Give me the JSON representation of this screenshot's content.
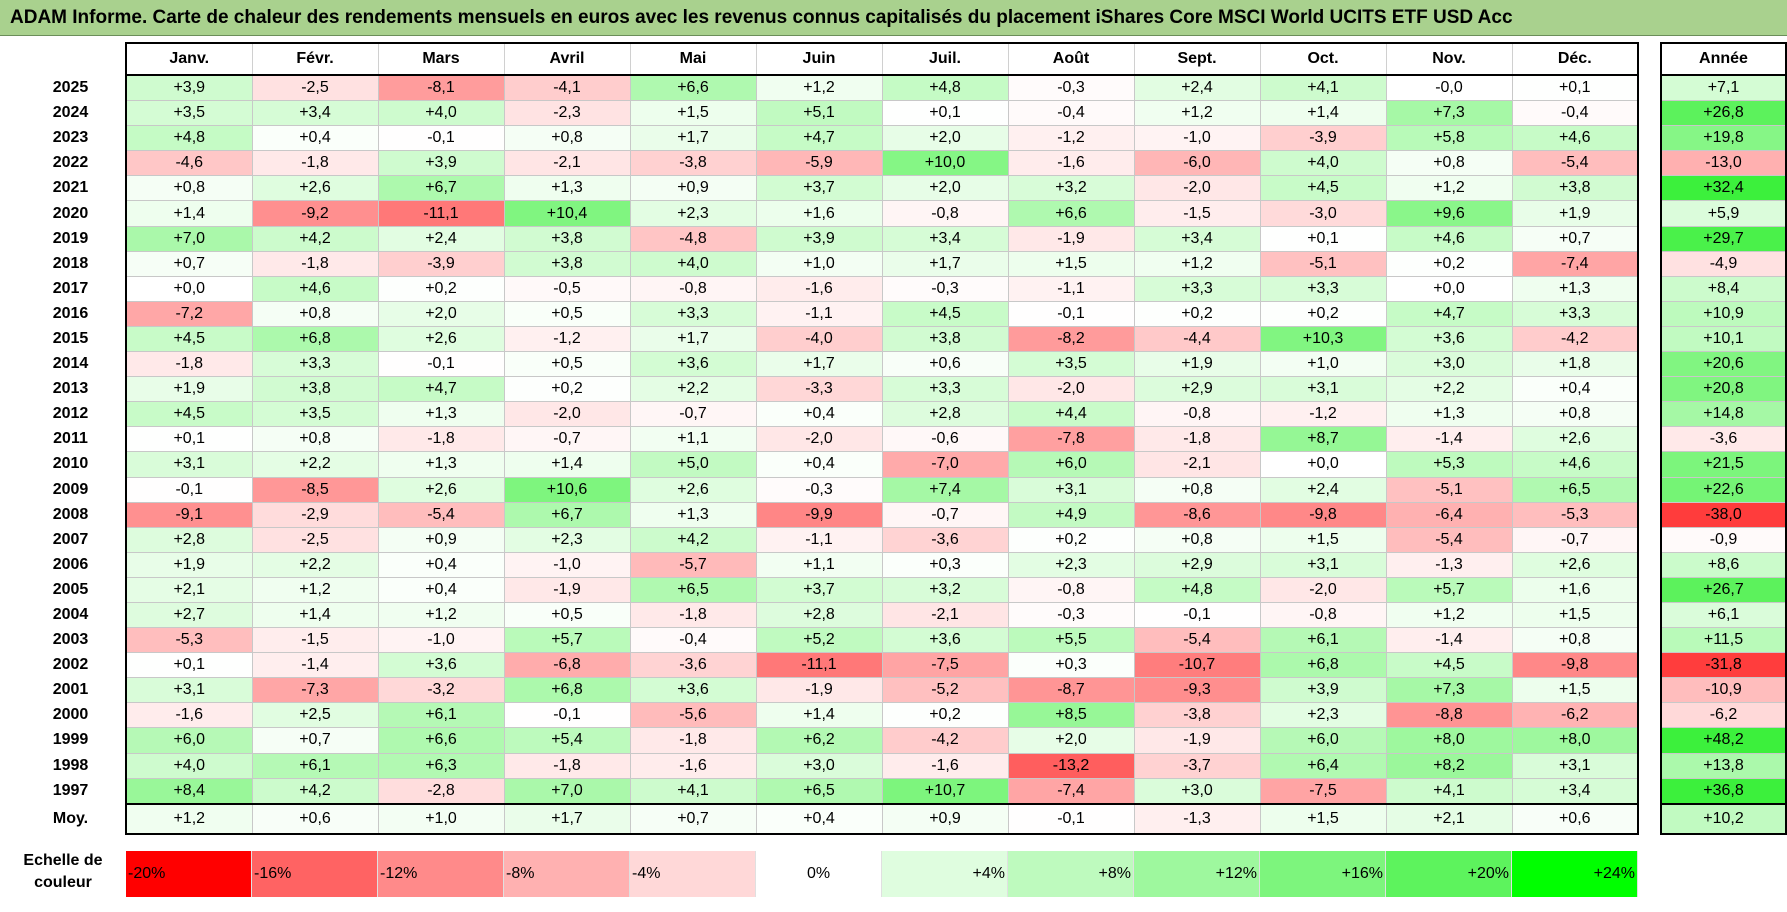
{
  "title": "ADAM Informe. Carte de chaleur des rendements mensuels en euros avec les revenus connus capitalisés du placement iShares Core MSCI World UCITS ETF USD Acc",
  "chart_data": {
    "type": "heatmap",
    "title": "ADAM Informe. Carte de chaleur des rendements mensuels en euros avec les revenus connus capitalisés du placement iShares Core MSCI World UCITS ETF USD Acc",
    "columns": [
      "Janv.",
      "Févr.",
      "Mars",
      "Avril",
      "Mai",
      "Juin",
      "Juil.",
      "Août",
      "Sept.",
      "Oct.",
      "Nov.",
      "Déc."
    ],
    "year_header": "Année",
    "rows": [
      {
        "year": "2025",
        "values": [
          "+3,9",
          "-2,5",
          "-8,1",
          "-4,1",
          "+6,6",
          "+1,2",
          "+4,8",
          "-0,3",
          "+2,4",
          "+4,1",
          "-0,0",
          "+0,1"
        ],
        "annual": "+7,1"
      },
      {
        "year": "2024",
        "values": [
          "+3,5",
          "+3,4",
          "+4,0",
          "-2,3",
          "+1,5",
          "+5,1",
          "+0,1",
          "-0,4",
          "+1,2",
          "+1,4",
          "+7,3",
          "-0,4"
        ],
        "annual": "+26,8"
      },
      {
        "year": "2023",
        "values": [
          "+4,8",
          "+0,4",
          "-0,1",
          "+0,8",
          "+1,7",
          "+4,7",
          "+2,0",
          "-1,2",
          "-1,0",
          "-3,9",
          "+5,8",
          "+4,6"
        ],
        "annual": "+19,8"
      },
      {
        "year": "2022",
        "values": [
          "-4,6",
          "-1,8",
          "+3,9",
          "-2,1",
          "-3,8",
          "-5,9",
          "+10,0",
          "-1,6",
          "-6,0",
          "+4,0",
          "+0,8",
          "-5,4"
        ],
        "annual": "-13,0"
      },
      {
        "year": "2021",
        "values": [
          "+0,8",
          "+2,6",
          "+6,7",
          "+1,3",
          "+0,9",
          "+3,7",
          "+2,0",
          "+3,2",
          "-2,0",
          "+4,5",
          "+1,2",
          "+3,8"
        ],
        "annual": "+32,4"
      },
      {
        "year": "2020",
        "values": [
          "+1,4",
          "-9,2",
          "-11,1",
          "+10,4",
          "+2,3",
          "+1,6",
          "-0,8",
          "+6,6",
          "-1,5",
          "-3,0",
          "+9,6",
          "+1,9"
        ],
        "annual": "+5,9"
      },
      {
        "year": "2019",
        "values": [
          "+7,0",
          "+4,2",
          "+2,4",
          "+3,8",
          "-4,8",
          "+3,9",
          "+3,4",
          "-1,9",
          "+3,4",
          "+0,1",
          "+4,6",
          "+0,7"
        ],
        "annual": "+29,7"
      },
      {
        "year": "2018",
        "values": [
          "+0,7",
          "-1,8",
          "-3,9",
          "+3,8",
          "+4,0",
          "+1,0",
          "+1,7",
          "+1,5",
          "+1,2",
          "-5,1",
          "+0,2",
          "-7,4"
        ],
        "annual": "-4,9"
      },
      {
        "year": "2017",
        "values": [
          "+0,0",
          "+4,6",
          "+0,2",
          "-0,5",
          "-0,8",
          "-1,6",
          "-0,3",
          "-1,1",
          "+3,3",
          "+3,3",
          "+0,0",
          "+1,3"
        ],
        "annual": "+8,4"
      },
      {
        "year": "2016",
        "values": [
          "-7,2",
          "+0,8",
          "+2,0",
          "+0,5",
          "+3,3",
          "-1,1",
          "+4,5",
          "-0,1",
          "+0,2",
          "+0,2",
          "+4,7",
          "+3,3"
        ],
        "annual": "+10,9"
      },
      {
        "year": "2015",
        "values": [
          "+4,5",
          "+6,8",
          "+2,6",
          "-1,2",
          "+1,7",
          "-4,0",
          "+3,8",
          "-8,2",
          "-4,4",
          "+10,3",
          "+3,6",
          "-4,2"
        ],
        "annual": "+10,1"
      },
      {
        "year": "2014",
        "values": [
          "-1,8",
          "+3,3",
          "-0,1",
          "+0,5",
          "+3,6",
          "+1,7",
          "+0,6",
          "+3,5",
          "+1,9",
          "+1,0",
          "+3,0",
          "+1,8"
        ],
        "annual": "+20,6"
      },
      {
        "year": "2013",
        "values": [
          "+1,9",
          "+3,8",
          "+4,7",
          "+0,2",
          "+2,2",
          "-3,3",
          "+3,3",
          "-2,0",
          "+2,9",
          "+3,1",
          "+2,2",
          "+0,4"
        ],
        "annual": "+20,8"
      },
      {
        "year": "2012",
        "values": [
          "+4,5",
          "+3,5",
          "+1,3",
          "-2,0",
          "-0,7",
          "+0,4",
          "+2,8",
          "+4,4",
          "-0,8",
          "-1,2",
          "+1,3",
          "+0,8"
        ],
        "annual": "+14,8"
      },
      {
        "year": "2011",
        "values": [
          "+0,1",
          "+0,8",
          "-1,8",
          "-0,7",
          "+1,1",
          "-2,0",
          "-0,6",
          "-7,8",
          "-1,8",
          "+8,7",
          "-1,4",
          "+2,6"
        ],
        "annual": "-3,6"
      },
      {
        "year": "2010",
        "values": [
          "+3,1",
          "+2,2",
          "+1,3",
          "+1,4",
          "+5,0",
          "+0,4",
          "-7,0",
          "+6,0",
          "-2,1",
          "+0,0",
          "+5,3",
          "+4,6"
        ],
        "annual": "+21,5"
      },
      {
        "year": "2009",
        "values": [
          "-0,1",
          "-8,5",
          "+2,6",
          "+10,6",
          "+2,6",
          "-0,3",
          "+7,4",
          "+3,1",
          "+0,8",
          "+2,4",
          "-5,1",
          "+6,5"
        ],
        "annual": "+22,6"
      },
      {
        "year": "2008",
        "values": [
          "-9,1",
          "-2,9",
          "-5,4",
          "+6,7",
          "+1,3",
          "-9,9",
          "-0,7",
          "+4,9",
          "-8,6",
          "-9,8",
          "-6,4",
          "-5,3"
        ],
        "annual": "-38,0"
      },
      {
        "year": "2007",
        "values": [
          "+2,8",
          "-2,5",
          "+0,9",
          "+2,3",
          "+4,2",
          "-1,1",
          "-3,6",
          "+0,2",
          "+0,8",
          "+1,5",
          "-5,4",
          "-0,7"
        ],
        "annual": "-0,9"
      },
      {
        "year": "2006",
        "values": [
          "+1,9",
          "+2,2",
          "+0,4",
          "-1,0",
          "-5,7",
          "+1,1",
          "+0,3",
          "+2,3",
          "+2,9",
          "+3,1",
          "-1,3",
          "+2,6"
        ],
        "annual": "+8,6"
      },
      {
        "year": "2005",
        "values": [
          "+2,1",
          "+1,2",
          "+0,4",
          "-1,9",
          "+6,5",
          "+3,7",
          "+3,2",
          "-0,8",
          "+4,8",
          "-2,0",
          "+5,7",
          "+1,6"
        ],
        "annual": "+26,7"
      },
      {
        "year": "2004",
        "values": [
          "+2,7",
          "+1,4",
          "+1,2",
          "+0,5",
          "-1,8",
          "+2,8",
          "-2,1",
          "-0,3",
          "-0,1",
          "-0,8",
          "+1,2",
          "+1,5"
        ],
        "annual": "+6,1"
      },
      {
        "year": "2003",
        "values": [
          "-5,3",
          "-1,5",
          "-1,0",
          "+5,7",
          "-0,4",
          "+5,2",
          "+3,6",
          "+5,5",
          "-5,4",
          "+6,1",
          "-1,4",
          "+0,8"
        ],
        "annual": "+11,5"
      },
      {
        "year": "2002",
        "values": [
          "+0,1",
          "-1,4",
          "+3,6",
          "-6,8",
          "-3,6",
          "-11,1",
          "-7,5",
          "+0,3",
          "-10,7",
          "+6,8",
          "+4,5",
          "-9,8"
        ],
        "annual": "-31,8"
      },
      {
        "year": "2001",
        "values": [
          "+3,1",
          "-7,3",
          "-3,2",
          "+6,8",
          "+3,6",
          "-1,9",
          "-5,2",
          "-8,7",
          "-9,3",
          "+3,9",
          "+7,3",
          "+1,5"
        ],
        "annual": "-10,9"
      },
      {
        "year": "2000",
        "values": [
          "-1,6",
          "+2,5",
          "+6,1",
          "-0,1",
          "-5,6",
          "+1,4",
          "+0,2",
          "+8,5",
          "-3,8",
          "+2,3",
          "-8,8",
          "-6,2"
        ],
        "annual": "-6,2"
      },
      {
        "year": "1999",
        "values": [
          "+6,0",
          "+0,7",
          "+6,6",
          "+5,4",
          "-1,8",
          "+6,2",
          "-4,2",
          "+2,0",
          "-1,9",
          "+6,0",
          "+8,0",
          "+8,0"
        ],
        "annual": "+48,2"
      },
      {
        "year": "1998",
        "values": [
          "+4,0",
          "+6,1",
          "+6,3",
          "-1,8",
          "-1,6",
          "+3,0",
          "-1,6",
          "-13,2",
          "-3,7",
          "+6,4",
          "+8,2",
          "+3,1"
        ],
        "annual": "+13,8"
      },
      {
        "year": "1997",
        "values": [
          "+8,4",
          "+4,2",
          "-2,8",
          "+7,0",
          "+4,1",
          "+6,5",
          "+10,7",
          "-7,4",
          "+3,0",
          "-7,5",
          "+4,1",
          "+3,4"
        ],
        "annual": "+36,8"
      }
    ],
    "average": {
      "label": "Moy.",
      "values": [
        "+1,2",
        "+0,6",
        "+1,0",
        "+1,7",
        "+0,7",
        "+0,4",
        "+0,9",
        "-0,1",
        "-1,3",
        "+1,5",
        "+2,1",
        "+0,6"
      ],
      "annual": "+10,2"
    },
    "scale": {
      "label_line1": "Echelle de",
      "label_line2": "couleur",
      "steps": [
        {
          "label": "-20%",
          "value": -20,
          "align": "left"
        },
        {
          "label": "-16%",
          "value": -16,
          "align": "left"
        },
        {
          "label": "-12%",
          "value": -12,
          "align": "left"
        },
        {
          "label": "-8%",
          "value": -8,
          "align": "left"
        },
        {
          "label": "-4%",
          "value": -4,
          "align": "left"
        },
        {
          "label": "0%",
          "value": 0,
          "align": "center"
        },
        {
          "label": "+4%",
          "value": 4,
          "align": "right"
        },
        {
          "label": "+8%",
          "value": 8,
          "align": "right"
        },
        {
          "label": "+12%",
          "value": 12,
          "align": "right"
        },
        {
          "label": "+16%",
          "value": 16,
          "align": "right"
        },
        {
          "label": "+20%",
          "value": 20,
          "align": "right"
        },
        {
          "label": "+24%",
          "value": 24,
          "align": "right"
        }
      ]
    },
    "colors": {
      "negative_max": "#ff0000",
      "neutral": "#ffffff",
      "positive_max": "#00ff00",
      "title_bar": "#a9d18e"
    }
  }
}
